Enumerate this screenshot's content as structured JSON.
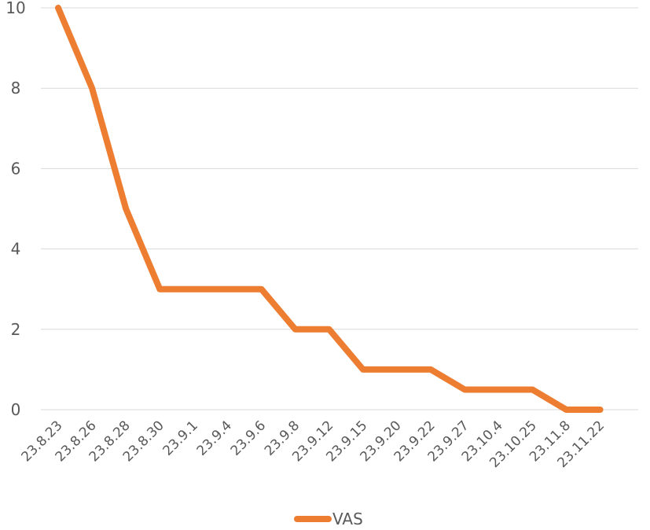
{
  "chart_data": {
    "type": "line",
    "categories": [
      "23.8.23",
      "23.8.26",
      "23.8.28",
      "23.8.30",
      "23.9.1",
      "23.9.4",
      "23.9.6",
      "23.9.8",
      "23.9.12",
      "23.9.15",
      "23.9.20",
      "23.9.22",
      "23.9.27",
      "23.10.4",
      "23.10.25",
      "23.11.8",
      "23.11.22"
    ],
    "series": [
      {
        "name": "VAS",
        "color": "#ED7D31",
        "values": [
          10,
          8,
          5,
          3,
          3,
          3,
          3,
          2,
          2,
          1,
          1,
          1,
          0.5,
          0.5,
          0.5,
          0,
          0
        ]
      }
    ],
    "ylim": [
      0,
      10
    ],
    "yticks": [
      0,
      2,
      4,
      6,
      8,
      10
    ],
    "grid": true,
    "gridline_color": "#D9D9D9",
    "axis_text_color": "#595959",
    "legend": "bottom",
    "title": "",
    "xlabel": "",
    "ylabel": ""
  }
}
